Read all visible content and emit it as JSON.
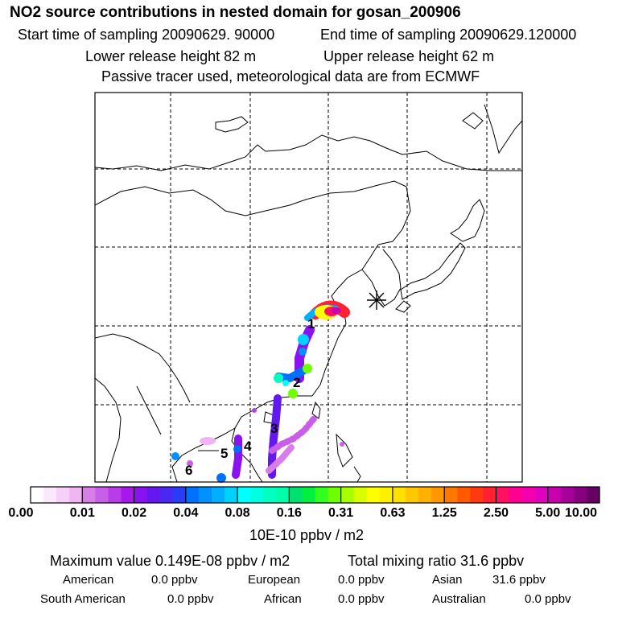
{
  "header": {
    "title": "NO2 source contributions in nested domain for gosan_200906",
    "start_label": "Start time of sampling 20090629. 90000",
    "end_label": "End time of sampling 20090629.120000",
    "lower_label": "Lower release height   82 m",
    "upper_label": "Upper release height   62 m",
    "note": "Passive tracer used, meteorological data are from ECMWF"
  },
  "map": {
    "receptor_marker": "asterisk",
    "source_labels": [
      "1",
      "2",
      "3",
      "4",
      "5",
      "6"
    ],
    "lon_range": [
      75,
      150
    ],
    "lat_range": [
      5,
      55
    ],
    "grid": true
  },
  "colorbar": {
    "tick_labels": [
      "0.00",
      "0.01",
      "0.02",
      "0.04",
      "0.08",
      "0.16",
      "0.31",
      "0.63",
      "1.25",
      "2.50",
      "5.00",
      "10.00"
    ],
    "colors": [
      [
        "#ffffff",
        "#fbe8fb",
        "#f6d0f6",
        "#f0b4f3"
      ],
      [
        "#d87ee8",
        "#c95ee8",
        "#b83ce8",
        "#a818ec"
      ],
      [
        "#8812f0",
        "#6418f0",
        "#4a28f4",
        "#2a3cf8"
      ],
      [
        "#0070ff",
        "#0090ff",
        "#00b0ff",
        "#00d2ff"
      ],
      [
        "#00ffff",
        "#00ffe0",
        "#00ffc0",
        "#00ffa8"
      ],
      [
        "#00e070",
        "#00f040",
        "#30ff20",
        "#70ff00"
      ],
      [
        "#a8ff00",
        "#d8ff00",
        "#ffff00",
        "#fff000"
      ],
      [
        "#ffe000",
        "#ffc800",
        "#ffb000",
        "#ff9800"
      ],
      [
        "#ff7800",
        "#ff5a00",
        "#ff3a10",
        "#ff2030"
      ],
      [
        "#ff1060",
        "#ff0090",
        "#f400b0",
        "#e000c0"
      ],
      [
        "#c800b0",
        "#a8009a",
        "#880080",
        "#680064"
      ]
    ],
    "units": "10E-10 ppbv / m2"
  },
  "summary": {
    "max_value": "Maximum value  0.149E-08 ppbv / m2",
    "total": "Total mixing ratio       31.6 ppbv",
    "regions": [
      {
        "name": "American",
        "value": "0.0 ppbv"
      },
      {
        "name": "European",
        "value": "0.0 ppbv"
      },
      {
        "name": "Asian",
        "value": "31.6 ppbv"
      },
      {
        "name": "South American",
        "value": "0.0 ppbv"
      },
      {
        "name": "African",
        "value": "0.0 ppbv"
      },
      {
        "name": "Australian",
        "value": "0.0 ppbv"
      }
    ]
  }
}
